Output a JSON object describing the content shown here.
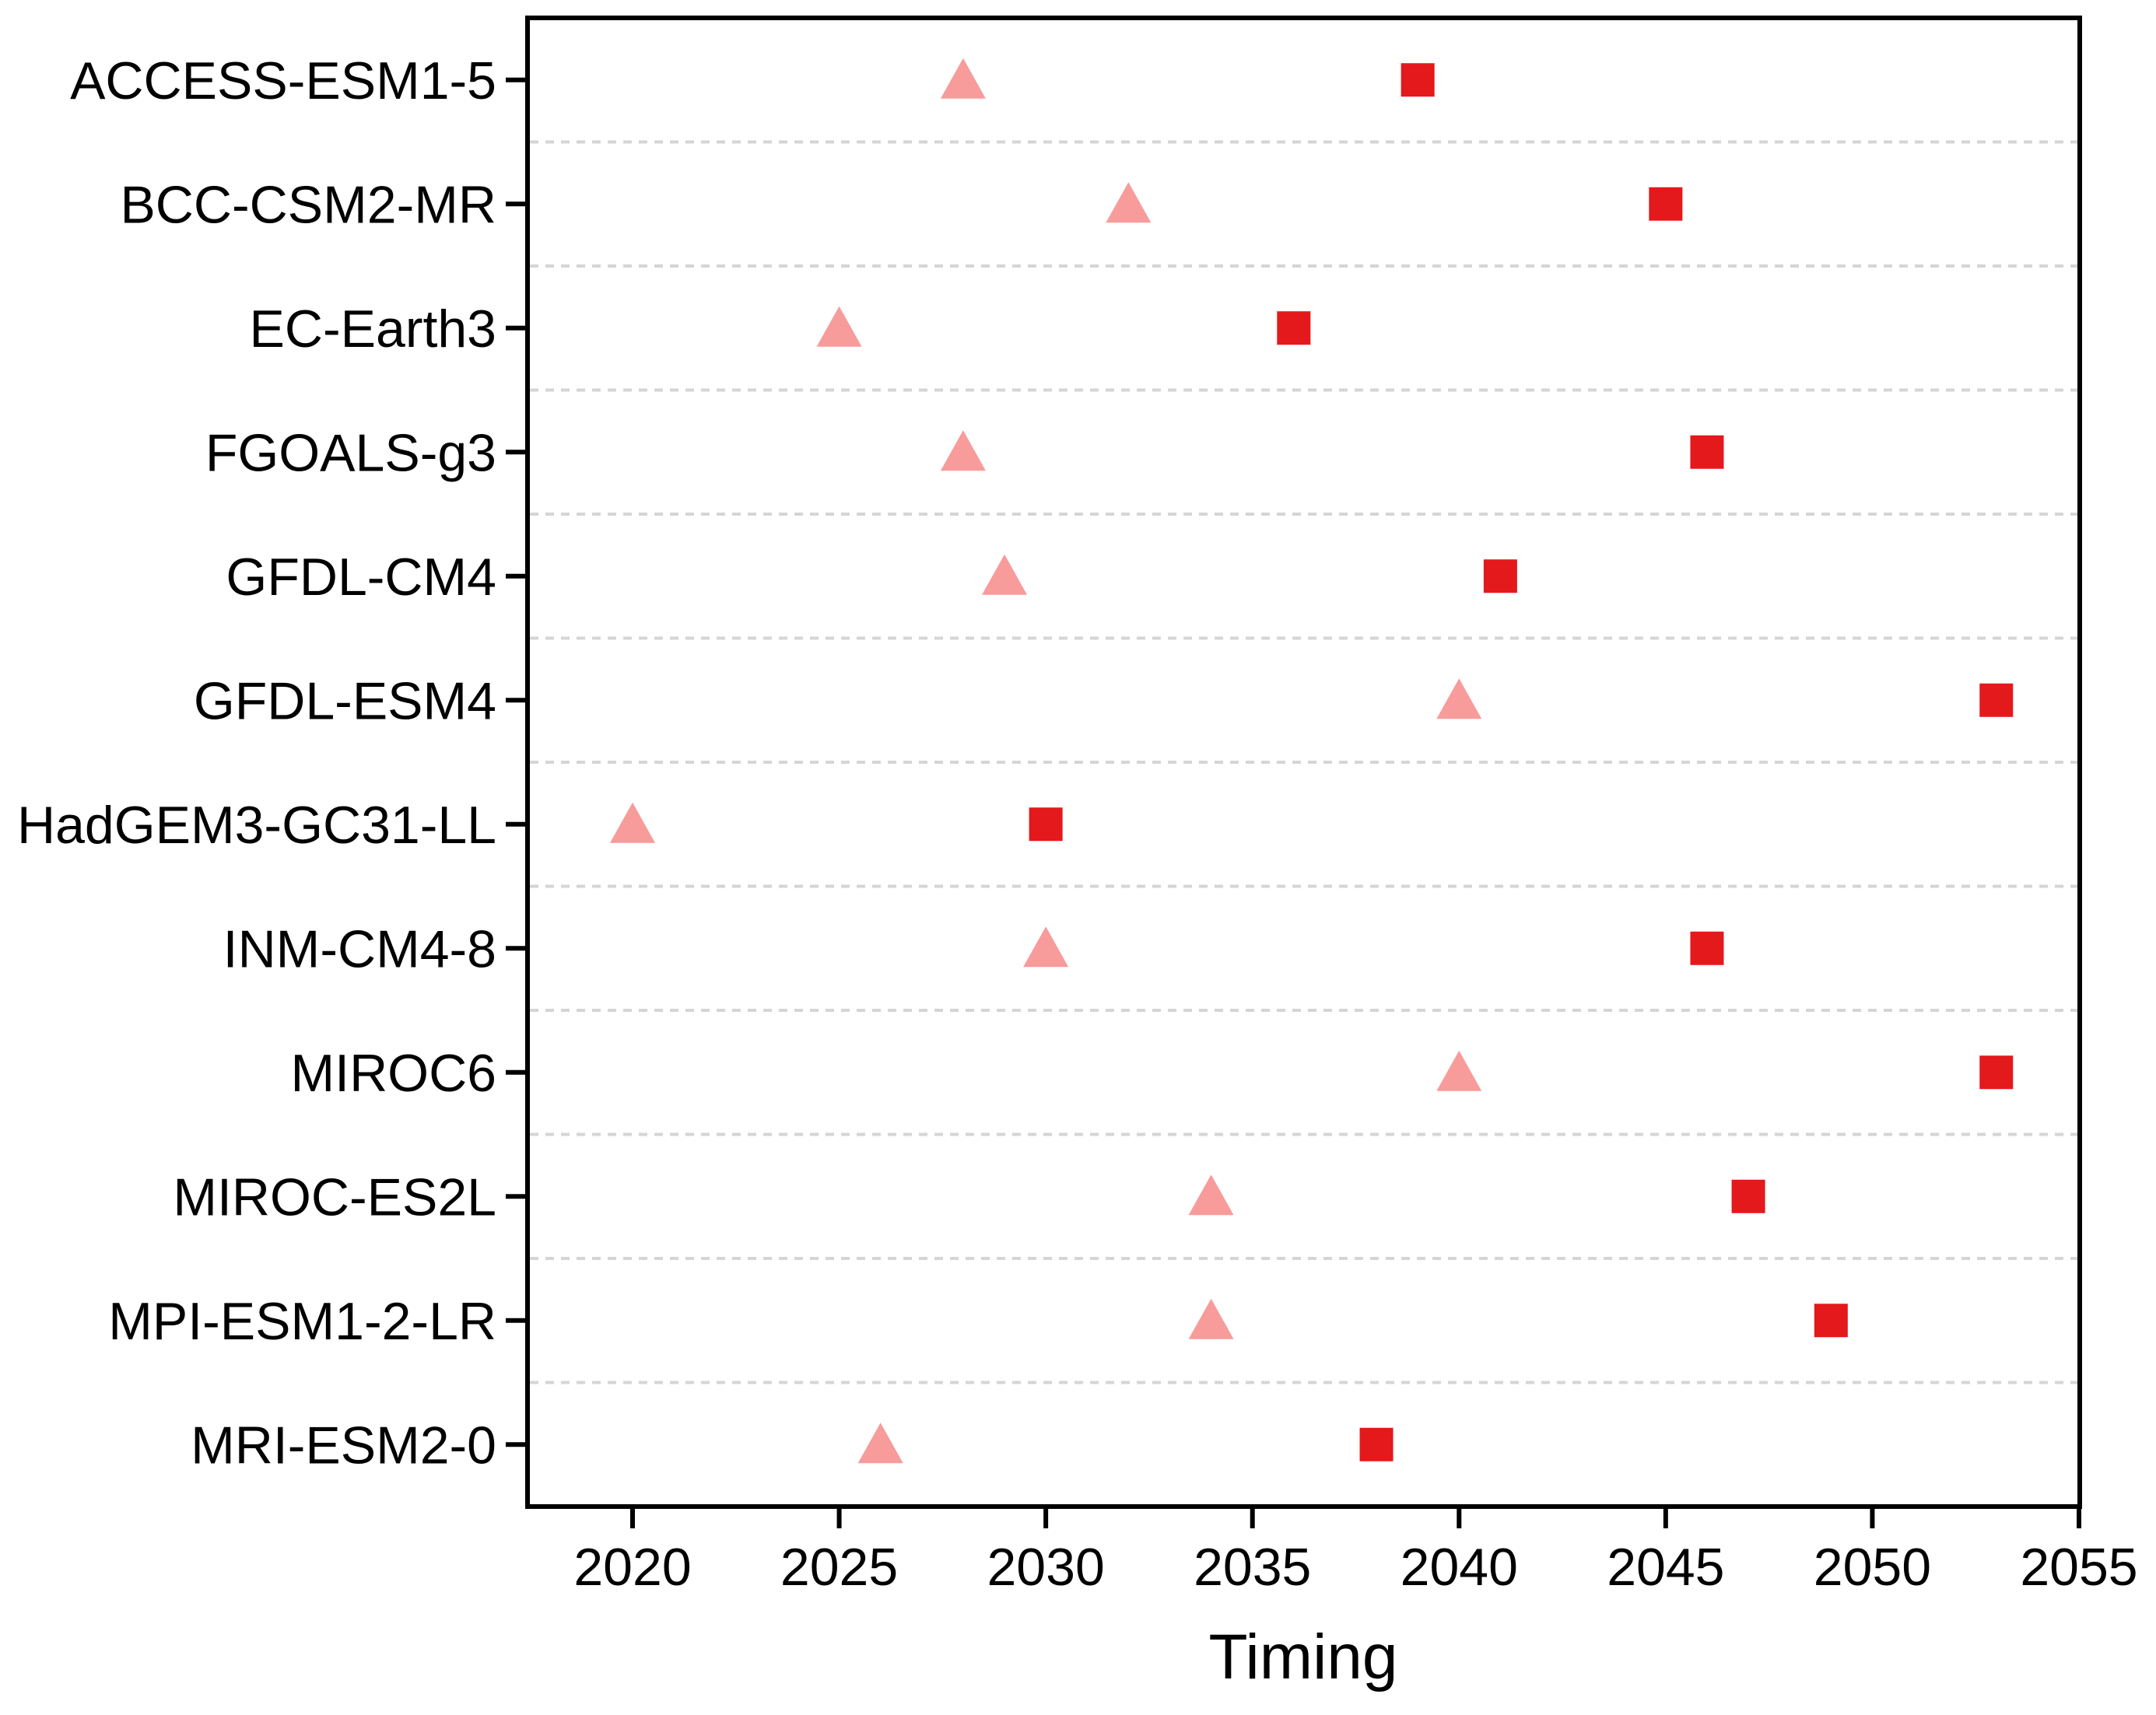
{
  "page": {
    "background": "#FFFFFF"
  },
  "chart_data": {
    "type": "scatter",
    "title": "",
    "xlabel": "Timing",
    "ylabel": "",
    "categories": [
      "ACCESS-ESM1-5",
      "BCC-CSM2-MR",
      "EC-Earth3",
      "FGOALS-g3",
      "GFDL-CM4",
      "GFDL-ESM4",
      "HadGEM3-GC31-LL",
      "INM-CM4-8",
      "MIROC6",
      "MIROC-ES2L",
      "MPI-ESM1-2-LR",
      "MRI-ESM2-0"
    ],
    "series": [
      {
        "name": "triangle",
        "marker": "triangle",
        "color": "#F89B9B",
        "values": [
          2028,
          2032,
          2025,
          2028,
          2029,
          2040,
          2020,
          2030,
          2040,
          2034,
          2034,
          2026
        ]
      },
      {
        "name": "square",
        "marker": "square",
        "color": "#E3191C",
        "values": [
          2039,
          2045,
          2036,
          2046,
          2041,
          2053,
          2030,
          2046,
          2053,
          2047,
          2049,
          2038
        ]
      }
    ],
    "x_ticks": [
      2020,
      2025,
      2030,
      2035,
      2040,
      2045,
      2050,
      2055
    ],
    "xlim": [
      2017.46,
      2055.02
    ],
    "grid": {
      "horizontal_dashed_separators": true,
      "color": "#D5D5D5"
    },
    "legend": "none",
    "axis_color": "#000000"
  }
}
